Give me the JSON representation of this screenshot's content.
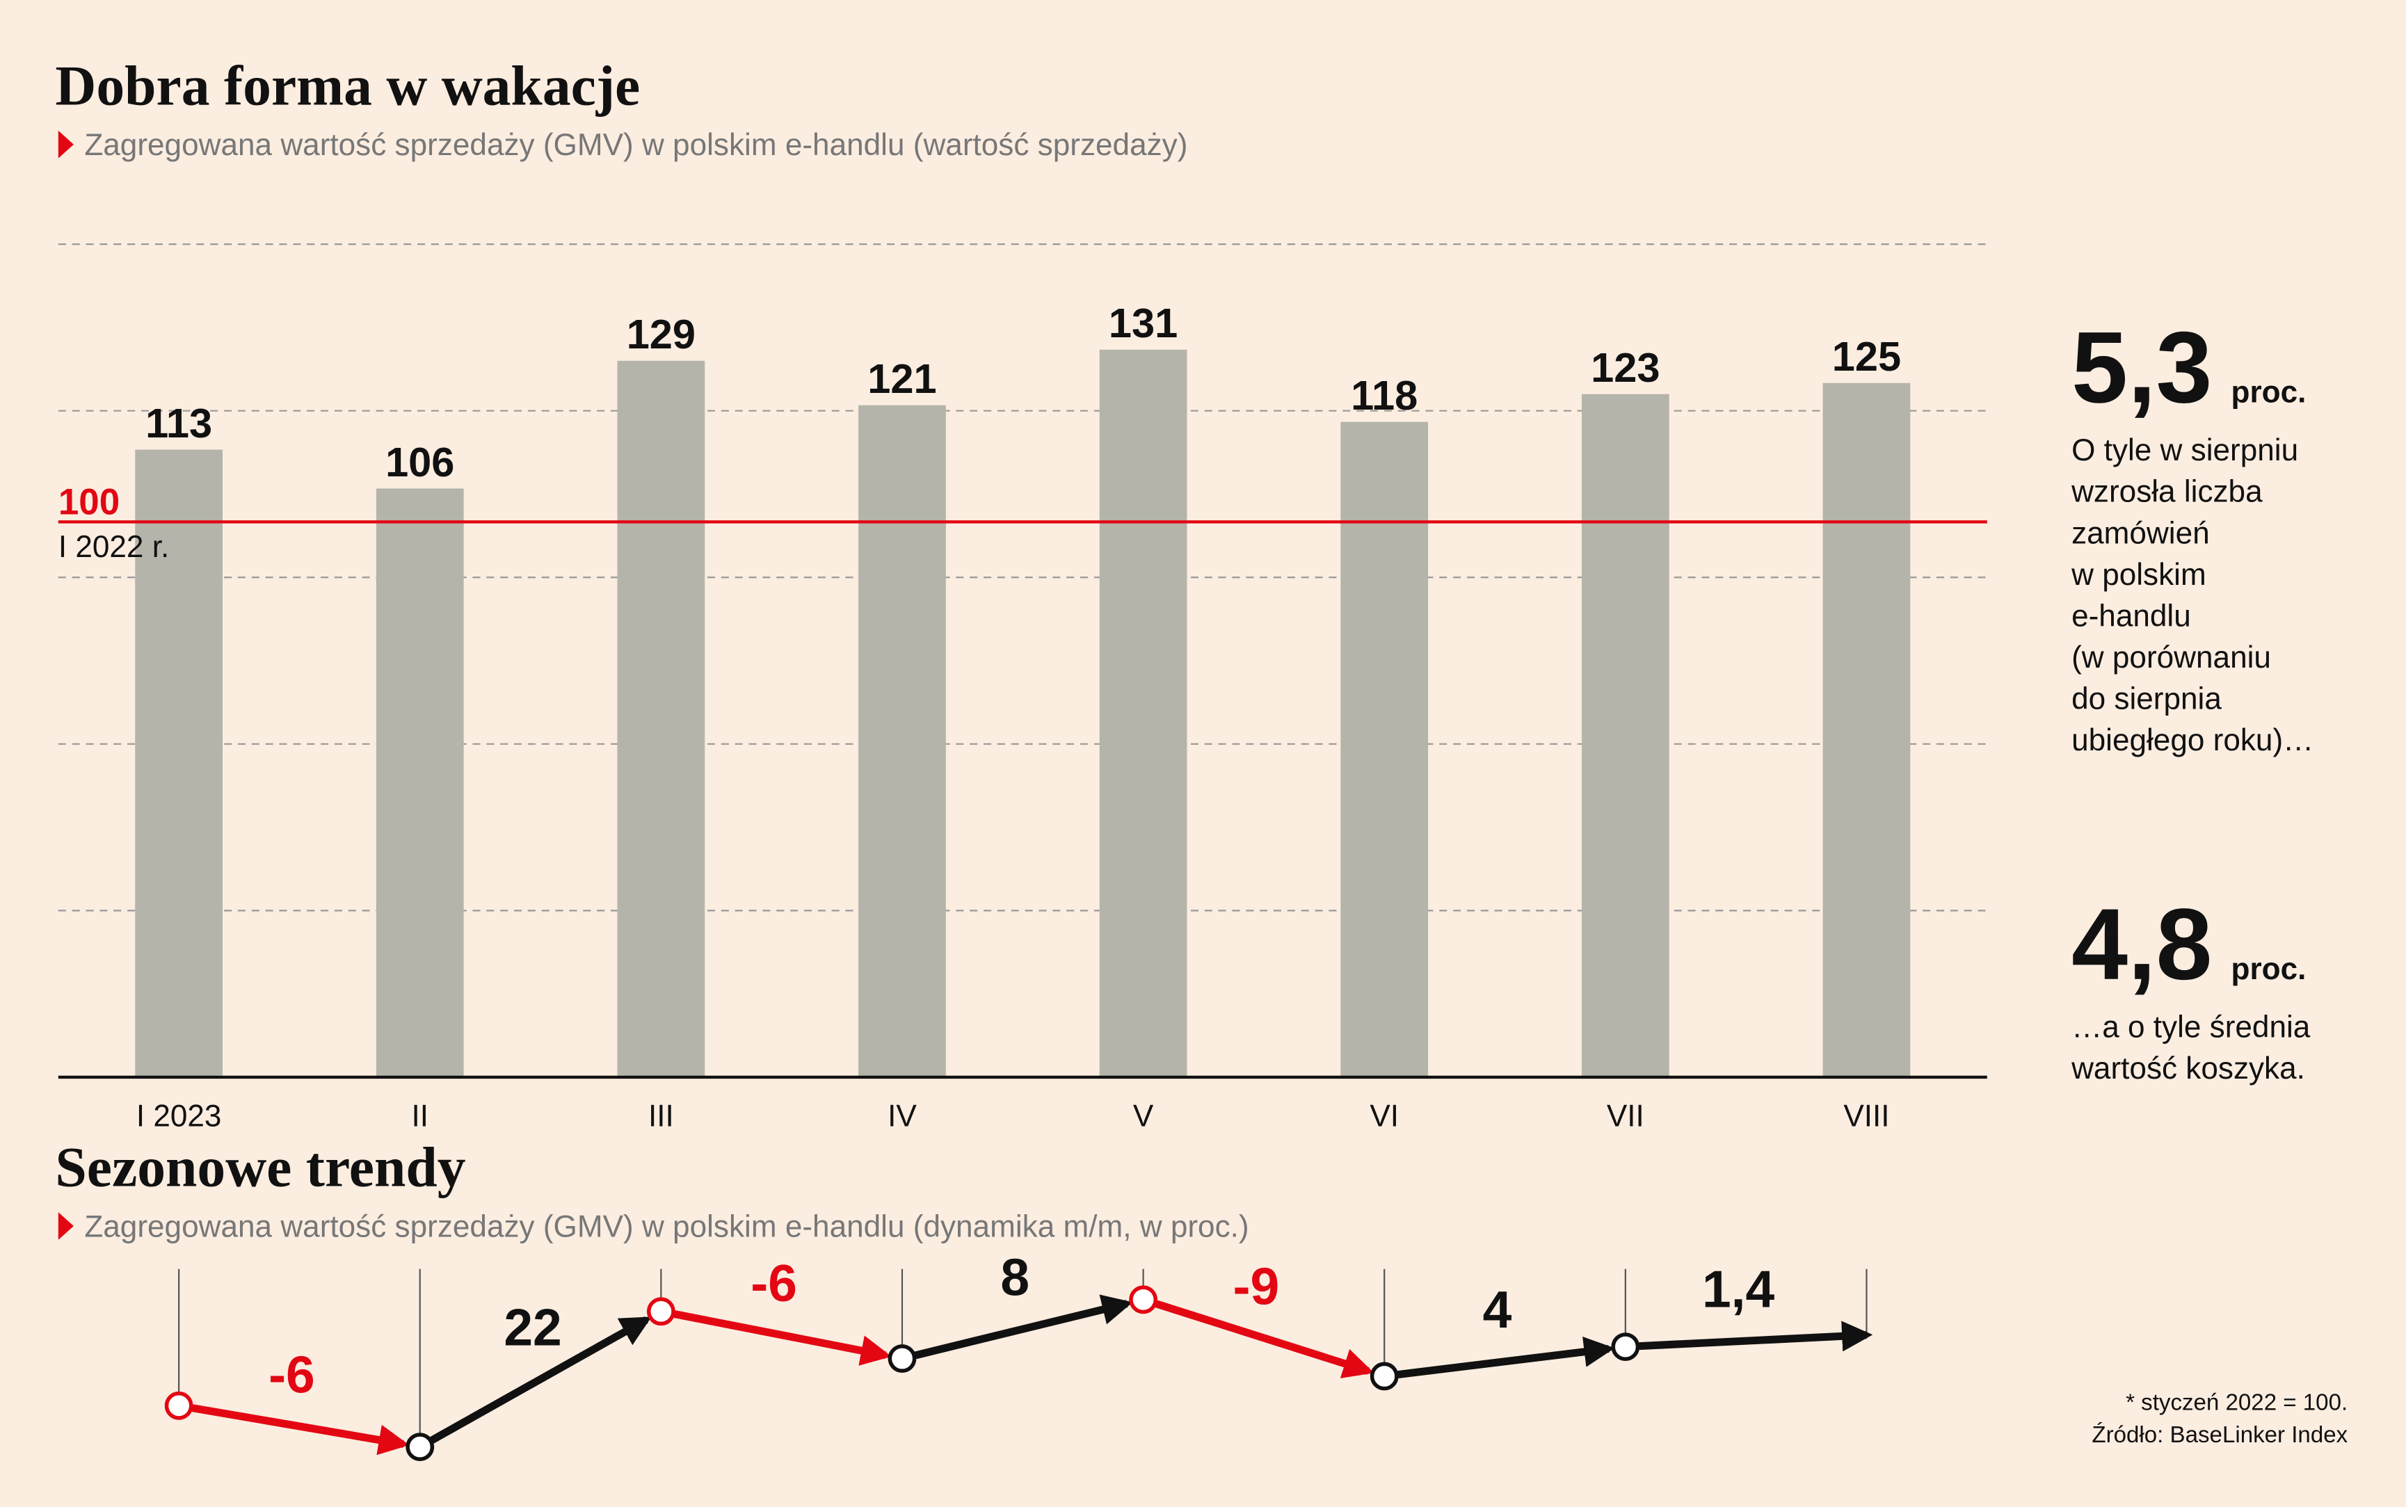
{
  "chart_data": [
    {
      "type": "bar",
      "title": "Dobra forma w wakacje",
      "subtitle": "Zagregowana wartość sprzedaży (GMV) w polskim e-handlu (wartość sprzedaży)",
      "categories": [
        "I 2023",
        "II",
        "III",
        "IV",
        "V",
        "VI",
        "VII",
        "VIII"
      ],
      "values": [
        113,
        106,
        129,
        121,
        131,
        118,
        123,
        125
      ],
      "color": "#b5b4ab",
      "ylim": [
        0,
        150
      ],
      "yticks": [
        0,
        30,
        60,
        90,
        120,
        150
      ],
      "grid": true,
      "reference_line": {
        "value": 100,
        "label": "100",
        "note": "I 2022 r.",
        "color": "#e30613"
      }
    },
    {
      "type": "arrows",
      "title": "Sezonowe trendy",
      "subtitle": "Zagregowana wartość sprzedaży (GMV) w polskim e-handlu (dynamika m/m, w proc.)",
      "values": [
        -6,
        22,
        -6,
        8,
        -9,
        4,
        1.4
      ],
      "value_labels": [
        "-6",
        "22",
        "-6",
        "8",
        "-9",
        "4",
        "1,4"
      ],
      "negative_color": "#e30613",
      "positive_color": "#111111"
    }
  ],
  "annotations": [
    {
      "value": "5,3",
      "unit": "proc.",
      "lines": [
        "O tyle w sierpniu",
        "wzrosła liczba",
        "zamówień",
        "w polskim",
        "e-handlu",
        "(w porównaniu",
        "do sierpnia",
        "ubiegłego roku)…"
      ]
    },
    {
      "value": "4,8",
      "unit": "proc.",
      "lines": [
        "…a o tyle średnia",
        "wartość koszyka."
      ]
    }
  ],
  "notes": [
    "* styczeń 2022 = 100.",
    "Źródło: BaseLinker Index"
  ]
}
